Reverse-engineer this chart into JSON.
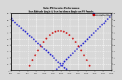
{
  "title": "Solar PV/Inverter Performance",
  "subtitle": "Sun Altitude Angle & Sun Incidence Angle on PV Panels",
  "legend1": "Sun Altitude Angle",
  "legend2": "Sun Incidence Angle",
  "color1": "#0000cc",
  "color2": "#cc0000",
  "ylim": [
    0,
    90
  ],
  "xlim": [
    0,
    1
  ],
  "background": "#d8d8d8",
  "grid_color": "#ffffff",
  "n_points": 50
}
